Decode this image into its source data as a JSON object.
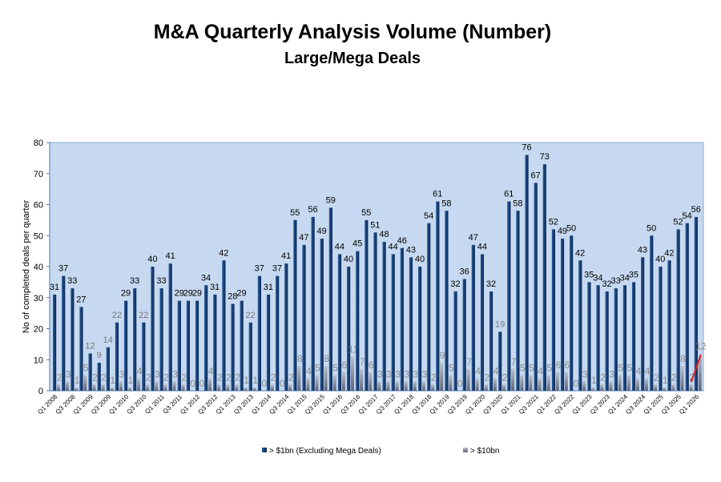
{
  "chart_data": {
    "type": "bar",
    "title": "M&A Quarterly Analysis Volume (Number)",
    "subtitle": "Large/Mega Deals",
    "ylabel": "No of completed deals per quarter",
    "xlabel": "",
    "ylim": [
      0,
      80
    ],
    "yticks": [
      0,
      10,
      20,
      30,
      40,
      50,
      60,
      70,
      80
    ],
    "grid": false,
    "legend": "bottom",
    "x_tick_labels": [
      "Q1 2008",
      "Q3 2008",
      "Q1 2009",
      "Q3 2009",
      "Q1 2010",
      "Q3 2010",
      "Q1 2011",
      "Q3 2011",
      "Q1 2012",
      "Q3 2012",
      "Q1 2013",
      "Q3 2013",
      "Q1 2014",
      "Q3 2014",
      "Q1 2015",
      "Q3 2015",
      "Q1 2016",
      "Q3 2016",
      "Q1 2017",
      "Q3 2017",
      "Q1 2018",
      "Q3 2018",
      "Q1 2019",
      "Q3 2019",
      "Q1 2020",
      "Q3 2020",
      "Q1 2021",
      "Q3 2021",
      "Q1 2022",
      "Q3 2022",
      "Q1 2023",
      "Q3 2023",
      "Q1 2024",
      "Q3 2024",
      "Q1 2025",
      "Q3 2025",
      "Q1 2026"
    ],
    "categories_note": "quarterly from Q1 2008 to Q1 2026",
    "series": [
      {
        "name": "> $1bn (Excluding Mega Deals)",
        "color": "#1f4e8c",
        "values": [
          31,
          37,
          33,
          27,
          12,
          9,
          14,
          22,
          29,
          33,
          22,
          40,
          33,
          41,
          29,
          29,
          29,
          34,
          31,
          42,
          28,
          29,
          22,
          37,
          31,
          37,
          41,
          55,
          47,
          56,
          49,
          59,
          44,
          40,
          45,
          55,
          51,
          48,
          44,
          46,
          43,
          40,
          54,
          61,
          58,
          32,
          36,
          47,
          44,
          32,
          19,
          61,
          58,
          76,
          67,
          73,
          52,
          49,
          50,
          42,
          35,
          34,
          32,
          33,
          34,
          35,
          43,
          50,
          40,
          42,
          52,
          54,
          56
        ]
      },
      {
        "name": "> $10bn",
        "color": "#8a93a8",
        "values": [
          2,
          3,
          1,
          5,
          2,
          2,
          1,
          3,
          1,
          4,
          2,
          3,
          2,
          3,
          2,
          0,
          0,
          4,
          2,
          2,
          2,
          1,
          1,
          0,
          2,
          0,
          2,
          8,
          4,
          5,
          8,
          5,
          6,
          11,
          7,
          6,
          3,
          3,
          3,
          3,
          3,
          3,
          2,
          9,
          5,
          0,
          7,
          4,
          2,
          4,
          2,
          7,
          5,
          5,
          4,
          5,
          6,
          6,
          0,
          3,
          1,
          2,
          3,
          5,
          5,
          4,
          4,
          2,
          1,
          2,
          8,
          2,
          12
        ]
      }
    ],
    "plot_background": "#c6d9f0",
    "annotation_color": "#e02020"
  }
}
